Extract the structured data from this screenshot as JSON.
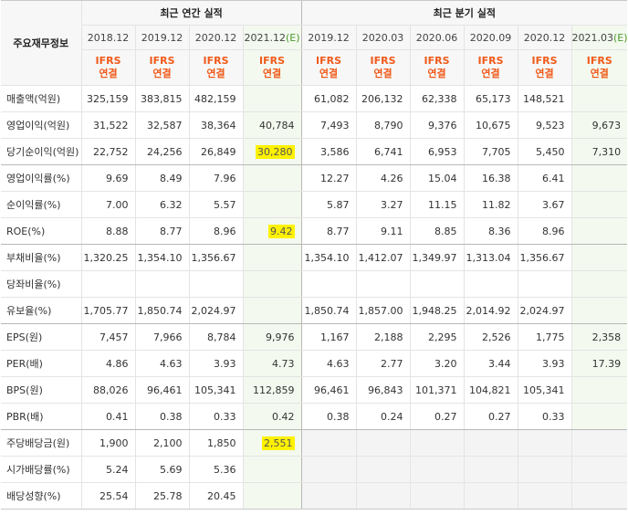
{
  "header": {
    "corner": "주요재무정보",
    "annual_title": "최근 연간 실적",
    "quarter_title": "최근 분기 실적",
    "annual_periods": [
      "2018.12",
      "2019.12",
      "2020.12",
      "2021.12"
    ],
    "annual_estimate_mark": "(E)",
    "quarter_periods": [
      "2019.12",
      "2020.03",
      "2020.06",
      "2020.09",
      "2020.12",
      "2021.03"
    ],
    "quarter_estimate_mark": "(E)",
    "ifrs_line1": "IFRS",
    "ifrs_line2": "연결"
  },
  "rows": [
    {
      "label": "매출액(억원)",
      "values": [
        "325,159",
        "383,815",
        "482,159",
        "",
        "61,082",
        "206,132",
        "62,338",
        "65,173",
        "148,521",
        ""
      ]
    },
    {
      "label": "영업이익(억원)",
      "values": [
        "31,522",
        "32,587",
        "38,364",
        "40,784",
        "7,493",
        "8,790",
        "9,376",
        "10,675",
        "9,523",
        "9,673"
      ]
    },
    {
      "label": "당기순이익(억원)",
      "values": [
        "22,752",
        "24,256",
        "26,849",
        "30,280",
        "3,586",
        "6,741",
        "6,953",
        "7,705",
        "5,450",
        "7,310"
      ]
    },
    {
      "label": "영업이익률(%)",
      "values": [
        "9.69",
        "8.49",
        "7.96",
        "",
        "12.27",
        "4.26",
        "15.04",
        "16.38",
        "6.41",
        ""
      ]
    },
    {
      "label": "순이익률(%)",
      "values": [
        "7.00",
        "6.32",
        "5.57",
        "",
        "5.87",
        "3.27",
        "11.15",
        "11.82",
        "3.67",
        ""
      ]
    },
    {
      "label": "ROE(%)",
      "values": [
        "8.88",
        "8.77",
        "8.96",
        "9.42",
        "8.77",
        "9.11",
        "8.85",
        "8.36",
        "8.96",
        ""
      ]
    },
    {
      "label": "부채비율(%)",
      "values": [
        "1,320.25",
        "1,354.10",
        "1,356.67",
        "",
        "1,354.10",
        "1,412.07",
        "1,349.97",
        "1,313.04",
        "1,356.67",
        ""
      ]
    },
    {
      "label": "당좌비율(%)",
      "values": [
        "",
        "",
        "",
        "",
        "",
        "",
        "",
        "",
        "",
        ""
      ]
    },
    {
      "label": "유보율(%)",
      "values": [
        "1,705.77",
        "1,850.74",
        "2,024.97",
        "",
        "1,850.74",
        "1,857.00",
        "1,948.25",
        "2,014.92",
        "2,024.97",
        ""
      ]
    },
    {
      "label": "EPS(원)",
      "values": [
        "7,457",
        "7,966",
        "8,784",
        "9,976",
        "1,167",
        "2,188",
        "2,295",
        "2,526",
        "1,775",
        "2,358"
      ]
    },
    {
      "label": "PER(배)",
      "values": [
        "4.86",
        "4.63",
        "3.93",
        "4.73",
        "4.63",
        "2.77",
        "3.20",
        "3.44",
        "3.93",
        "17.39"
      ]
    },
    {
      "label": "BPS(원)",
      "values": [
        "88,026",
        "96,461",
        "105,341",
        "112,859",
        "96,461",
        "96,843",
        "101,371",
        "104,821",
        "105,341",
        ""
      ]
    },
    {
      "label": "PBR(배)",
      "values": [
        "0.41",
        "0.38",
        "0.33",
        "0.42",
        "0.38",
        "0.24",
        "0.27",
        "0.27",
        "0.33",
        ""
      ]
    },
    {
      "label": "주당배당금(원)",
      "values": [
        "1,900",
        "2,100",
        "1,850",
        "2,551",
        "",
        "",
        "",
        "",
        "",
        ""
      ]
    },
    {
      "label": "시가배당률(%)",
      "values": [
        "5.24",
        "5.69",
        "5.36",
        "",
        "",
        "",
        "",
        "",
        "",
        ""
      ]
    },
    {
      "label": "배당성향(%)",
      "values": [
        "25.54",
        "25.78",
        "20.45",
        "",
        "",
        "",
        "",
        "",
        "",
        ""
      ]
    }
  ],
  "highlighted_cells": [
    "2-3",
    "5-3",
    "13-3"
  ],
  "colors": {
    "ifrs_text": "#f05a1a",
    "estimate_column_bg": "#f3f9ee",
    "estimate_mark": "#4a9a2c",
    "highlight": "#fff200",
    "header_bg": "#f7f7f7"
  }
}
